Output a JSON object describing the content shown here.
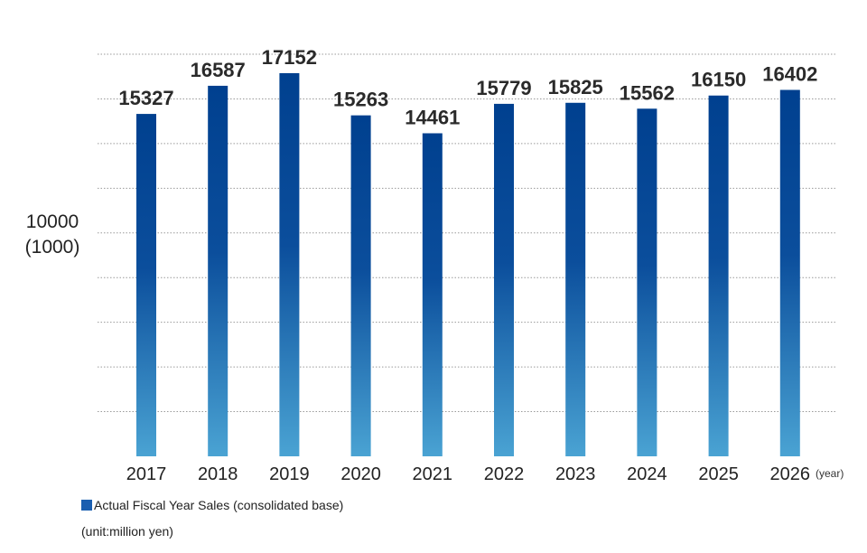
{
  "chart_data": {
    "type": "bar",
    "categories": [
      "2017",
      "2018",
      "2019",
      "2020",
      "2021",
      "2022",
      "2023",
      "2024",
      "2025",
      "2026"
    ],
    "series": [
      {
        "name": "Actual Fiscal Year Sales (consolidated base)",
        "values": [
          15327,
          16587,
          17152,
          15263,
          14461,
          15779,
          15825,
          15562,
          16150,
          16402
        ]
      }
    ],
    "xunit": "(year)",
    "ylabel_value": "10000",
    "ylabel_paren": "(1000)",
    "ylim": [
      0,
      18000
    ],
    "grid": "dotted-horizontal",
    "legend": "bottom-left",
    "unit_note": "(unit:million yen)",
    "colors": {
      "bar_top": "#00408f",
      "bar_bottom": "#4aa3d3",
      "swatch": "#1a5eb0"
    }
  }
}
